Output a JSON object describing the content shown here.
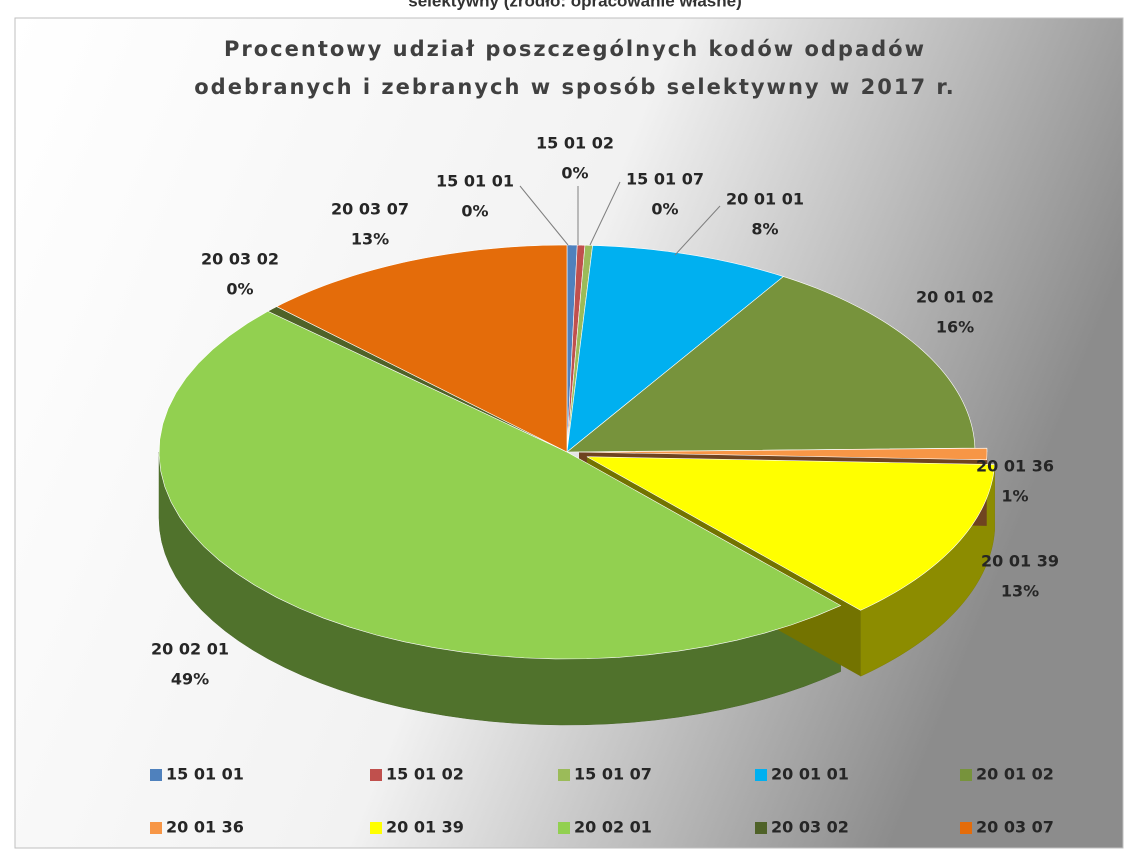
{
  "caption": "selektywny (źródło: opracowanie własne)",
  "chart_data": {
    "type": "pie",
    "title": [
      "Procentowy udział poszczególnych kodów odpadów",
      "odebranych i zebranych w sposób selektywny w 2017 r."
    ],
    "categories": [
      "15 01 01",
      "15 01 02",
      "15 01 07",
      "20 01 01",
      "20 01 02",
      "20 01 36",
      "20 01 39",
      "20 02 01",
      "20 03 02",
      "20 03 07"
    ],
    "values": [
      0.4,
      0.3,
      0.3,
      7.9,
      15.8,
      0.9,
      12.7,
      48.6,
      0.5,
      12.6
    ],
    "value_labels": [
      "0%",
      "0%",
      "0%",
      "8%",
      "16%",
      "1%",
      "13%",
      "49%",
      "0%",
      "13%"
    ],
    "colors": [
      "#4f81bd",
      "#c0504d",
      "#9bbb59",
      "#00b0f0",
      "#77933c",
      "#f79646",
      "#ffff00",
      "#92d050",
      "#4f6228",
      "#e46c0a"
    ],
    "legend": "bottom"
  }
}
